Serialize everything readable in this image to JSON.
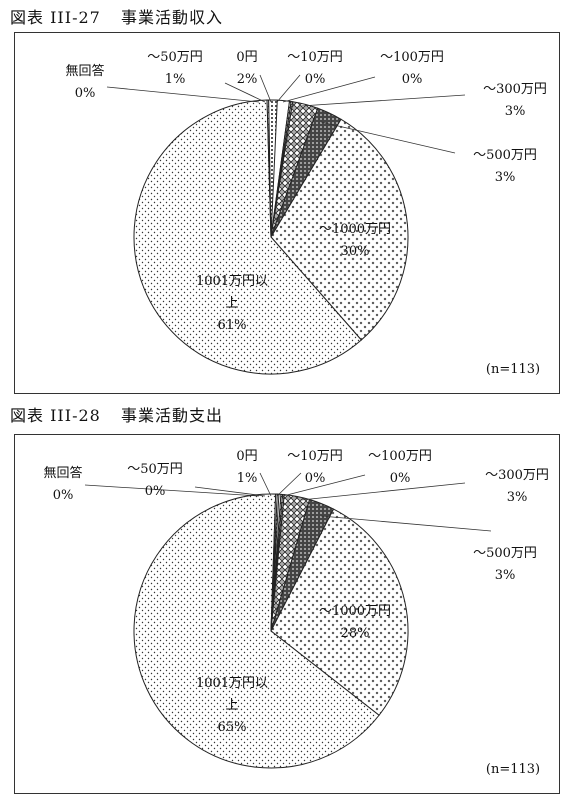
{
  "charts": [
    {
      "title_prefix": "図表",
      "title_num": "III-27",
      "title": "事業活動収入",
      "note": "(n=113)"
    },
    {
      "title_prefix": "図表",
      "title_num": "III-28",
      "title": "事業活動支出",
      "note": "(n=113)"
    }
  ],
  "chart_data": [
    {
      "type": "pie",
      "title": "事業活動収入",
      "categories": [
        "無回答",
        "~50万円",
        "0円",
        "~10万円",
        "~100万円",
        "~300万円",
        "~500万円",
        "~1000万円",
        "1001万円以上"
      ],
      "labels": [
        "無回答",
        "～50万円",
        "0円",
        "～10万円",
        "～100万円",
        "～300万円",
        "～500万円",
        "～1000万円",
        "1001万円以上"
      ],
      "values": [
        0,
        1,
        2,
        0,
        0,
        3,
        3,
        30,
        61
      ],
      "value_labels": [
        "0%",
        "1%",
        "2%",
        "0%",
        "0%",
        "3%",
        "3%",
        "30%",
        "61%"
      ],
      "patterns": [
        "dots",
        "grid",
        "white",
        "zigzag",
        "cross",
        "diamond",
        "dark",
        "xpattern",
        "dots"
      ],
      "note": "(n=113)"
    },
    {
      "type": "pie",
      "title": "事業活動支出",
      "categories": [
        "無回答",
        "~50万円",
        "0円",
        "~10万円",
        "~100万円",
        "~300万円",
        "~500万円",
        "~1000万円",
        "1001万円以上"
      ],
      "labels": [
        "無回答",
        "～50万円",
        "0円",
        "～10万円",
        "～100万円",
        "～300万円",
        "～500万円",
        "～1000万円",
        "1001万円以上"
      ],
      "values": [
        0,
        0,
        1,
        0,
        0,
        3,
        3,
        28,
        65
      ],
      "value_labels": [
        "0%",
        "0%",
        "1%",
        "0%",
        "0%",
        "3%",
        "3%",
        "28%",
        "65%"
      ],
      "patterns": [
        "dots",
        "grid",
        "white",
        "zigzag",
        "cross",
        "diamond",
        "dark",
        "xpattern",
        "dots"
      ],
      "note": "(n=113)"
    }
  ]
}
